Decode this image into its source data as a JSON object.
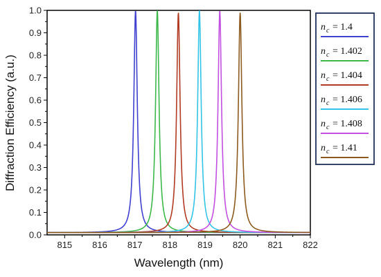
{
  "chart_data": {
    "type": "line",
    "xlabel": "Wavelength (nm)",
    "ylabel": "Diffraction Efficiency (a.u.)",
    "xlim": [
      814.5,
      822
    ],
    "ylim": [
      0,
      1
    ],
    "xticks": [
      "815",
      "816",
      "817",
      "818",
      "819",
      "820",
      "821",
      "822"
    ],
    "yticks": [
      "0.0",
      "0.1",
      "0.2",
      "0.3",
      "0.4",
      "0.5",
      "0.6",
      "0.7",
      "0.8",
      "0.9",
      "1.0"
    ],
    "grid": false,
    "legend_position": "right",
    "series": [
      {
        "name": "n_c = 1.4",
        "legend_sub": "c",
        "legend_value": "= 1.4",
        "color": "#3f3fd0",
        "peak_x": 817.02,
        "peak_y": 1.0,
        "fwhm": 0.12
      },
      {
        "name": "n_c = 1.402",
        "legend_sub": "c",
        "legend_value": "= 1.402",
        "color": "#3cb84a",
        "peak_x": 817.64,
        "peak_y": 1.0,
        "fwhm": 0.12
      },
      {
        "name": "n_c = 1.404",
        "legend_sub": "c",
        "legend_value": "= 1.404",
        "color": "#b03a22",
        "peak_x": 818.24,
        "peak_y": 0.99,
        "fwhm": 0.12
      },
      {
        "name": "n_c = 1.406",
        "legend_sub": "c",
        "legend_value": "= 1.406",
        "color": "#33c3e6",
        "peak_x": 818.84,
        "peak_y": 1.0,
        "fwhm": 0.12
      },
      {
        "name": "n_c = 1.408",
        "legend_sub": "c",
        "legend_value": "= 1.408",
        "color": "#c24fe0",
        "peak_x": 819.42,
        "peak_y": 1.0,
        "fwhm": 0.12
      },
      {
        "name": "n_c = 1.41",
        "legend_sub": "c",
        "legend_value": "= 1.41",
        "color": "#8c5a1e",
        "peak_x": 820.0,
        "peak_y": 0.99,
        "fwhm": 0.12
      }
    ],
    "baseline": 0.01
  }
}
